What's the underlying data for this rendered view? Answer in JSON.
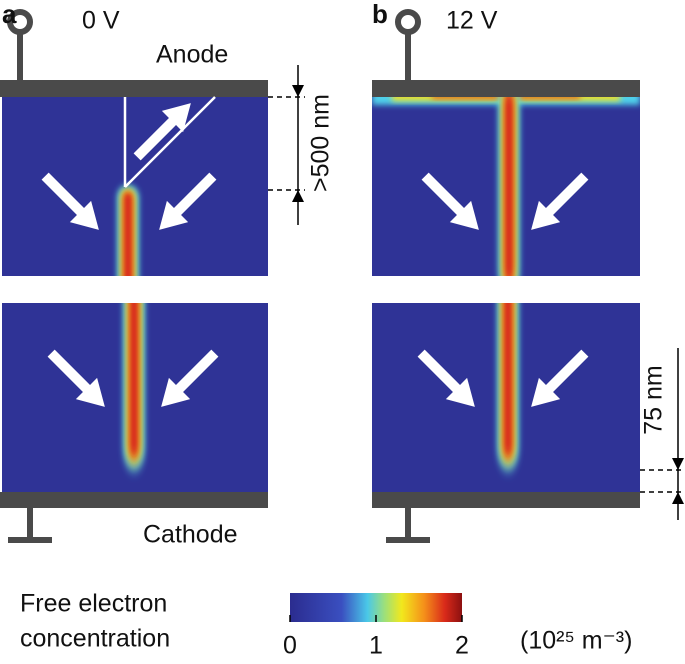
{
  "panels": [
    {
      "label": "a",
      "voltage": "0 V"
    },
    {
      "label": "b",
      "voltage": "12 V"
    }
  ],
  "electrodes": {
    "anode": "Anode",
    "cathode": "Cathode"
  },
  "dimensions": {
    "anode_gap": ">500 nm",
    "tip_gap": "75 nm"
  },
  "colorbar": {
    "title": [
      "Free electron",
      "concentration"
    ],
    "lim": [
      0,
      2
    ],
    "ticks": [
      0,
      1,
      2
    ],
    "unit": "(10²⁵ m⁻³)"
  }
}
